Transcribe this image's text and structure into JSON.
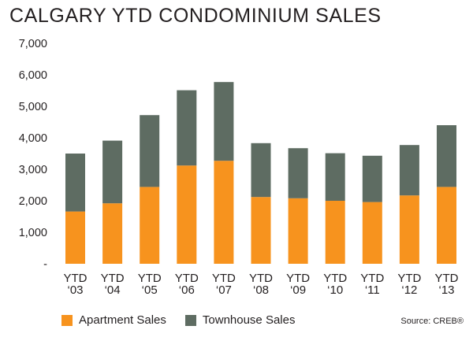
{
  "title": "CALGARY YTD CONDOMINIUM SALES",
  "source": "Source: CREB®",
  "colors": {
    "apartment": "#f7931e",
    "townhouse": "#5e6c62",
    "axis": "#231f20"
  },
  "legend": [
    {
      "label": "Apartment Sales",
      "color": "#f7931e"
    },
    {
      "label": "Townhouse Sales",
      "color": "#5e6c62"
    }
  ],
  "chart_data": {
    "type": "bar",
    "stacked": true,
    "title": "CALGARY YTD CONDOMINIUM SALES",
    "categories": [
      [
        "YTD",
        "‘03"
      ],
      [
        "YTD",
        "‘04"
      ],
      [
        "YTD",
        "‘05"
      ],
      [
        "YTD",
        "‘06"
      ],
      [
        "YTD",
        "‘07"
      ],
      [
        "YTD",
        "‘08"
      ],
      [
        "YTD",
        "‘09"
      ],
      [
        "YTD",
        "‘10"
      ],
      [
        "YTD",
        "‘11"
      ],
      [
        "YTD",
        "‘12"
      ],
      [
        "YTD",
        "‘13"
      ]
    ],
    "series": [
      {
        "name": "Apartment Sales",
        "values": [
          1660,
          1920,
          2440,
          3120,
          3270,
          2120,
          2080,
          2000,
          1960,
          2170,
          2440
        ]
      },
      {
        "name": "Townhouse Sales",
        "values": [
          1840,
          1990,
          2280,
          2390,
          2500,
          1710,
          1590,
          1510,
          1470,
          1600,
          1960
        ]
      }
    ],
    "ylim": [
      0,
      7000
    ],
    "yticks": [
      0,
      1000,
      2000,
      3000,
      4000,
      5000,
      6000,
      7000
    ],
    "ytick_labels": [
      "-",
      "1,000",
      "2,000",
      "3,000",
      "4,000",
      "5,000",
      "6,000",
      "7,000"
    ],
    "grid": false,
    "legend_position": "bottom-left"
  }
}
